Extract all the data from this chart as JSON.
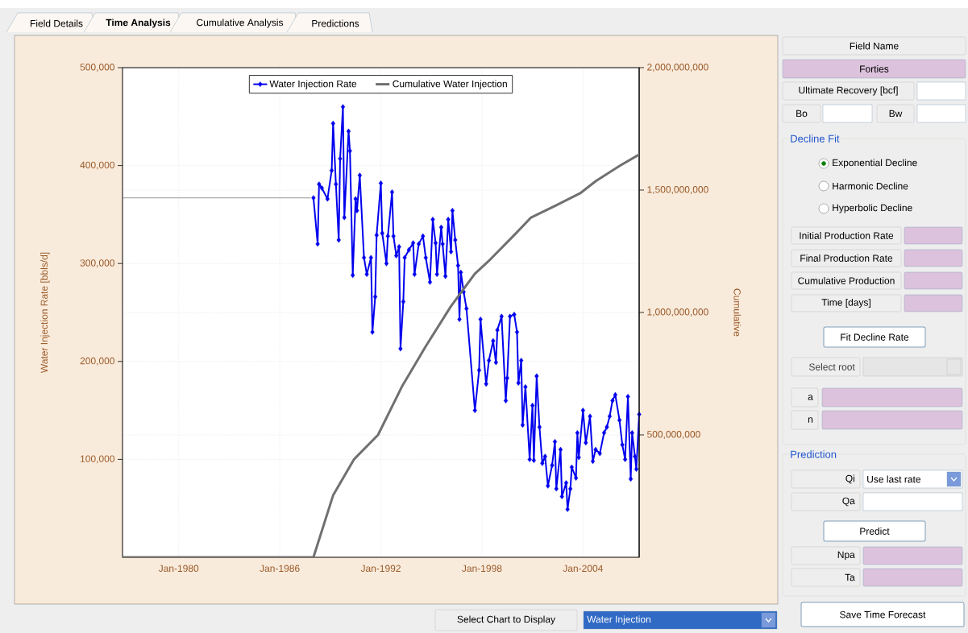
{
  "chart_data": [
    {
      "type": "line",
      "ylabel": "Water Injection Rate [bbls/d]",
      "y2label": "Cumulative",
      "xlim": [
        "1976-09",
        "2007-05"
      ],
      "xticks": [
        {
          "value": "1980-01",
          "label": "Jan-1980"
        },
        {
          "value": "1986-01",
          "label": "Jan-1986"
        },
        {
          "value": "1992-01",
          "label": "Jan-1992"
        },
        {
          "value": "1998-01",
          "label": "Jan-1998"
        },
        {
          "value": "2004-01",
          "label": "Jan-2004"
        }
      ],
      "ylim": [
        0,
        500000
      ],
      "yticks": [
        {
          "value": 100000,
          "label": "100,000"
        },
        {
          "value": 200000,
          "label": "200,000"
        },
        {
          "value": 300000,
          "label": "300,000"
        },
        {
          "value": 400000,
          "label": "400,000"
        },
        {
          "value": 500000,
          "label": "500,000"
        }
      ],
      "y2lim": [
        0,
        2000000000
      ],
      "y2ticks": [
        {
          "value": 500000000,
          "label": "500,000,000"
        },
        {
          "value": 1000000000,
          "label": "1,000,000,000"
        },
        {
          "value": 1500000000,
          "label": "1,500,000,000"
        },
        {
          "value": 2000000000,
          "label": "2,000,000,000"
        }
      ],
      "grid": true,
      "legend": "top",
      "series": [
        {
          "color": "#505050",
          "marker": "none",
          "x": [
            "1976-09",
            "1987-11"
          ],
          "values": [
            367000,
            367000
          ]
        },
        {
          "name": "Water Injection Rate",
          "color": "#0000ee",
          "marker": "diamond",
          "x": [
            "1988-01",
            "1988-04",
            "1988-05",
            "1988-07",
            "1988-11",
            "1989-02",
            "1989-03",
            "1989-05",
            "1989-07",
            "1989-08",
            "1989-10",
            "1989-11",
            "1990-02",
            "1990-03",
            "1990-05",
            "1990-07",
            "1990-08",
            "1990-10",
            "1991-01",
            "1991-03",
            "1991-06",
            "1991-07",
            "1991-09",
            "1991-10",
            "1992-01",
            "1992-02",
            "1992-05",
            "1992-06",
            "1992-09",
            "1992-10",
            "1992-12",
            "1993-02",
            "1993-03",
            "1993-05",
            "1993-06",
            "1993-09",
            "1993-12",
            "1994-01",
            "1994-04",
            "1994-07",
            "1994-09",
            "1994-12",
            "1995-02",
            "1995-04",
            "1995-05",
            "1995-08",
            "1995-09",
            "1995-11",
            "1996-01",
            "1996-03",
            "1996-04",
            "1996-06",
            "1996-08",
            "1996-09",
            "1996-10",
            "1996-12",
            "1997-02",
            "1997-08",
            "1997-11",
            "1997-12",
            "1998-04",
            "1998-06",
            "1998-09",
            "1998-11",
            "1998-12",
            "1999-03",
            "1999-06",
            "1999-07",
            "1999-09",
            "1999-12",
            "2000-02",
            "2000-03",
            "2000-05",
            "2000-06",
            "2000-08",
            "2000-11",
            "2001-01",
            "2001-02",
            "2001-04",
            "2001-06",
            "2001-08",
            "2001-10",
            "2001-12",
            "2002-03",
            "2002-05",
            "2002-06",
            "2002-09",
            "2002-10",
            "2003-01",
            "2003-02",
            "2003-04",
            "2003-05",
            "2003-08",
            "2003-09",
            "2003-10",
            "2004-01",
            "2004-03",
            "2004-06",
            "2004-08",
            "2004-10",
            "2005-01",
            "2005-04",
            "2005-06",
            "2005-08",
            "2005-10",
            "2005-12",
            "2006-03",
            "2006-05",
            "2006-07",
            "2006-09",
            "2006-11",
            "2006-12",
            "2007-02",
            "2007-03",
            "2007-05"
          ],
          "values": [
            367000,
            320000,
            381000,
            377000,
            366000,
            395000,
            443000,
            381000,
            324000,
            407000,
            460000,
            347000,
            435000,
            415000,
            288000,
            366000,
            354000,
            390000,
            306000,
            289000,
            306000,
            230000,
            266000,
            329000,
            382000,
            331000,
            300000,
            328000,
            373000,
            328000,
            308000,
            317000,
            213000,
            261000,
            306000,
            314000,
            321000,
            289000,
            320000,
            328000,
            306000,
            281000,
            345000,
            321000,
            289000,
            337000,
            320000,
            287000,
            345000,
            312000,
            354000,
            324000,
            298000,
            243000,
            291000,
            271000,
            254000,
            150000,
            191000,
            243000,
            177000,
            201000,
            221000,
            199000,
            232000,
            246000,
            160000,
            183000,
            246000,
            248000,
            230000,
            178000,
            201000,
            135000,
            174000,
            100000,
            155000,
            99000,
            185000,
            133000,
            96000,
            103000,
            73000,
            94000,
            118000,
            70000,
            110000,
            62000,
            76000,
            49000,
            70000,
            92000,
            81000,
            127000,
            102000,
            150000,
            117000,
            144000,
            98000,
            110000,
            106000,
            127000,
            133000,
            144000,
            160000,
            166000,
            140000,
            115000,
            100000,
            164000,
            80000,
            127000,
            103000,
            90000,
            146000
          ]
        },
        {
          "name": "Cumulative Water Injection",
          "color": "#707070",
          "marker": "none",
          "axis": "y2",
          "x": [
            "1976-09",
            "1988-01",
            "1989-03",
            "1990-06",
            "1991-11",
            "1993-04",
            "1994-09",
            "1996-03",
            "1997-08",
            "1998-07",
            "2000-01",
            "2000-12",
            "2002-06",
            "2003-11",
            "2004-10",
            "2006-04",
            "2007-05"
          ],
          "values": [
            0,
            0,
            253000000,
            401000000,
            500000000,
            697000000,
            862000000,
            1026000000,
            1158000000,
            1217000000,
            1322000000,
            1388000000,
            1438000000,
            1487000000,
            1536000000,
            1602000000,
            1645000000
          ]
        }
      ]
    },
    {
      "type": "other",
      "annotations": [
        "Field Details",
        "Time Analysis",
        "Cumulative Analysis",
        "Predictions",
        "Field Name",
        "Forties",
        "Ultimate Recovery [bcf]",
        "Bo",
        "Bw",
        "Decline Fit",
        "Exponential Decline",
        "Harmonic Decline",
        "Hyperbolic Decline",
        "Initial Production Rate",
        "Final Production Rate",
        "Cumulative Production",
        "Time [days]",
        "Fit Decline Rate",
        "Select root",
        "a",
        "n",
        "Prediction",
        "Qi",
        "Use last rate",
        "Qa",
        "Predict",
        "Npa",
        "Ta",
        "Save Time Forecast",
        "Select Chart to Display",
        "Water Injection"
      ]
    }
  ]
}
